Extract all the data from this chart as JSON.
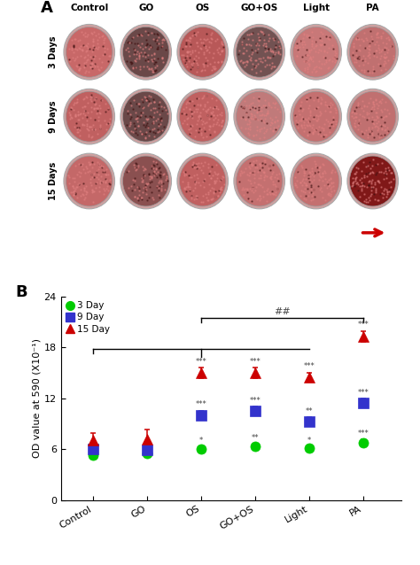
{
  "categories": [
    "Control",
    "GO",
    "OS",
    "GO+OS",
    "Light",
    "PA"
  ],
  "day3": {
    "means": [
      5.3,
      5.5,
      6.0,
      6.3,
      6.1,
      6.8
    ],
    "errors": [
      0.25,
      0.25,
      0.3,
      0.3,
      0.25,
      0.35
    ],
    "color": "#00cc00",
    "marker": "o",
    "label": "3 Day"
  },
  "day9": {
    "means": [
      6.0,
      5.9,
      10.0,
      10.5,
      9.3,
      11.5
    ],
    "errors": [
      0.35,
      0.6,
      0.55,
      0.55,
      0.5,
      0.45
    ],
    "color": "#3333cc",
    "marker": "s",
    "label": "9 Day"
  },
  "day15": {
    "means": [
      7.1,
      7.2,
      15.0,
      15.0,
      14.5,
      19.3
    ],
    "errors": [
      0.85,
      1.1,
      0.65,
      0.6,
      0.55,
      0.65
    ],
    "color": "#cc0000",
    "marker": "^",
    "label": "15 Day"
  },
  "ylim": [
    0,
    24
  ],
  "yticks": [
    0,
    6,
    12,
    18,
    24
  ],
  "ylabel": "OD value at 590 (X10⁻¹)",
  "sig_day3": [
    "",
    "",
    "*",
    "**",
    "*",
    "***"
  ],
  "sig_day9": [
    "",
    "",
    "***",
    "***",
    "**",
    "***"
  ],
  "sig_day15": [
    "",
    "",
    "***",
    "***",
    "***",
    "***"
  ],
  "row_labels": [
    "3 Days",
    "9 Days",
    "15 Days"
  ],
  "col_labels": [
    "Control",
    "GO",
    "OS",
    "GO+OS",
    "Light",
    "PA"
  ],
  "dish_colors": [
    [
      "#c86868",
      "#6a4848",
      "#b85858",
      "#725252",
      "#c87878",
      "#c07070"
    ],
    [
      "#c06060",
      "#6a4848",
      "#c06060",
      "#c07a7a",
      "#c47070",
      "#c07070"
    ],
    [
      "#c46868",
      "#8a5050",
      "#c06060",
      "#c47070",
      "#c47070",
      "#801818"
    ]
  ],
  "panel_bg": "#f0d0d0",
  "background_color": "#ffffff"
}
